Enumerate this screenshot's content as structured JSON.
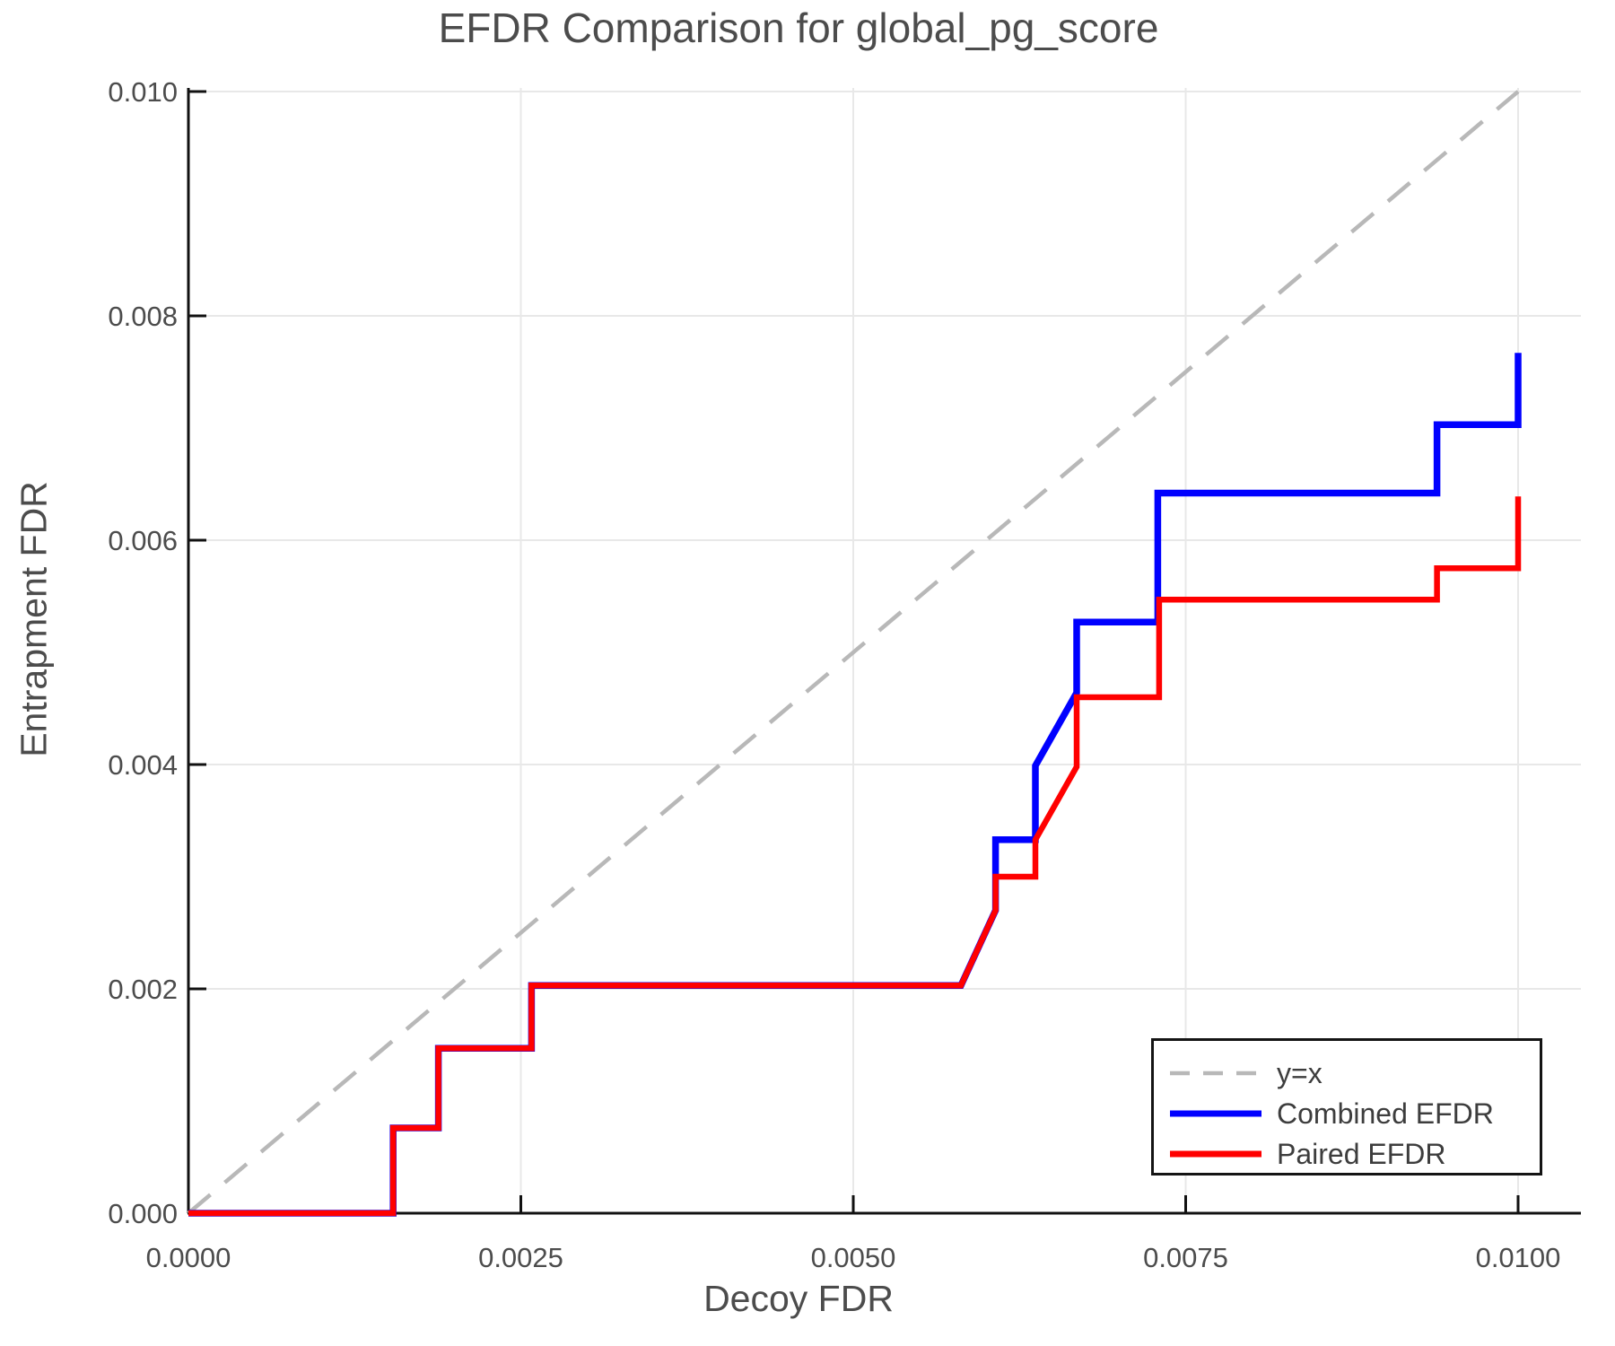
{
  "chart_data": {
    "type": "line",
    "subtype": "step-efdr-comparison",
    "title": "EFDR Comparison for global_pg_score",
    "xlabel": "Decoy FDR",
    "ylabel": "Entrapment FDR",
    "xlim": [
      0.0,
      0.0105
    ],
    "ylim": [
      0.0,
      0.01
    ],
    "grid": true,
    "legend_position": "lower right",
    "x_ticks": {
      "values": [
        0.0,
        0.0025,
        0.005,
        0.0075,
        0.01
      ],
      "labels": [
        "0.0000",
        "0.0025",
        "0.0050",
        "0.0075",
        "0.0100"
      ]
    },
    "y_ticks": {
      "values": [
        0.0,
        0.002,
        0.004,
        0.006,
        0.008,
        0.01
      ],
      "labels": [
        "0.000",
        "0.002",
        "0.004",
        "0.006",
        "0.008",
        "0.010"
      ]
    },
    "reference_line": {
      "name": "y=x",
      "style": "dashed",
      "color": "#b8b8b8",
      "from": [
        0.0,
        0.0
      ],
      "to": [
        0.01,
        0.01
      ]
    },
    "series": [
      {
        "name": "Combined EFDR",
        "color": "#0000ff",
        "points": [
          [
            0.0,
            0.0
          ],
          [
            0.00154,
            0.0
          ],
          [
            0.00154,
            0.00076
          ],
          [
            0.00188,
            0.00076
          ],
          [
            0.00188,
            0.00147
          ],
          [
            0.00258,
            0.00147
          ],
          [
            0.00258,
            0.00203
          ],
          [
            0.00581,
            0.00203
          ],
          [
            0.00607,
            0.0027
          ],
          [
            0.00607,
            0.00333
          ],
          [
            0.00637,
            0.00333
          ],
          [
            0.00637,
            0.00399
          ],
          [
            0.00668,
            0.00464
          ],
          [
            0.00668,
            0.00527
          ],
          [
            0.00729,
            0.00527
          ],
          [
            0.00729,
            0.00642
          ],
          [
            0.00939,
            0.00642
          ],
          [
            0.00939,
            0.00703
          ],
          [
            0.01,
            0.00703
          ],
          [
            0.01,
            0.00767
          ]
        ]
      },
      {
        "name": "Paired EFDR",
        "color": "#ff0000",
        "points": [
          [
            0.0,
            0.0
          ],
          [
            0.00154,
            0.0
          ],
          [
            0.00154,
            0.00076
          ],
          [
            0.00188,
            0.00076
          ],
          [
            0.00188,
            0.00147
          ],
          [
            0.00258,
            0.00147
          ],
          [
            0.00258,
            0.00203
          ],
          [
            0.00581,
            0.00203
          ],
          [
            0.00607,
            0.0027
          ],
          [
            0.00607,
            0.003
          ],
          [
            0.00637,
            0.003
          ],
          [
            0.00637,
            0.00333
          ],
          [
            0.00668,
            0.00398
          ],
          [
            0.00668,
            0.0046
          ],
          [
            0.0073,
            0.0046
          ],
          [
            0.0073,
            0.00547
          ],
          [
            0.00939,
            0.00547
          ],
          [
            0.00939,
            0.00575
          ],
          [
            0.01,
            0.00575
          ],
          [
            0.01,
            0.00639
          ]
        ]
      }
    ],
    "style": {
      "grid_color": "#e8e8e8",
      "spine_color": "#111111",
      "tick_color": "#111111",
      "text_color": "#4c4c4c",
      "legend_text_color": "#3d3d3d",
      "background": "#ffffff"
    }
  }
}
